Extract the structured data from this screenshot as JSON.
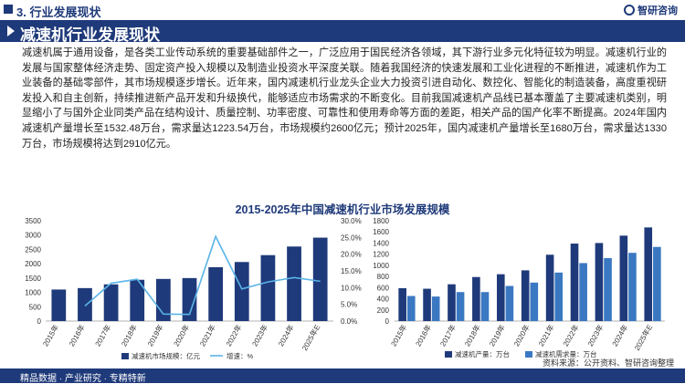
{
  "header": {
    "section": "3. 行业发展现状",
    "logo_text": "智研咨询"
  },
  "title": "减速机行业发展现状",
  "paragraph": "减速机属于通用设备，是各类工业传动系统的重要基础部件之一，广泛应用于国民经济各领域，其下游行业多元化特征较为明显。减速机行业的发展与国家整体经济走势、固定资产投入规模以及制造业投资水平深度关联。随着我国经济的快速发展和工业化进程的不断推进，减速机作为工业装备的基础零部件，其市场规模逐步增长。近年来，国内减速机行业龙头企业大力投资引进自动化、数控化、智能化的制造装备，高度重视研发投入和自主创新，持续推进新产品开发和升级换代，能够适应市场需求的不断变化。目前我国减速机产品线已基本覆盖了主要减速机类别，明显缩小了与国外企业同类产品在结构设计、质量控制、功率密度、可靠性和使用寿命等方面的差距，相关产品的国产化率不断提高。2024年国内减速机产量增长至1532.48万台，需求量达1223.54万台，市场规模约2600亿元；预计2025年，国内减速机产量增长至1680万台，需求量达1330万台，市场规模将达到2910亿元。",
  "chart_title": "2015-2025年中国减速机行业市场发展规模",
  "source": "资料来源：公开资料、智研咨询整理",
  "footer": "精品数据 · 产业研究 · 专精特新",
  "colors": {
    "navy": "#1f3a7a",
    "blue": "#3a78c2",
    "line": "#5ab4e8"
  },
  "chart_data": [
    {
      "type": "bar",
      "categories": [
        "2015年",
        "2016年",
        "2017年",
        "2018年",
        "2019年",
        "2020年",
        "2021年",
        "2022年",
        "2023年",
        "2024年",
        "2025年E"
      ],
      "series": [
        {
          "name": "减速机市场规模：亿元",
          "type": "bar",
          "axis": "left",
          "values": [
            1100,
            1150,
            1280,
            1440,
            1470,
            1500,
            1880,
            2060,
            2300,
            2600,
            2910
          ]
        },
        {
          "name": "增速：%",
          "type": "line",
          "axis": "right",
          "values": [
            null,
            4.5,
            11.3,
            12.5,
            2.1,
            2.0,
            25.3,
            9.6,
            11.7,
            13.0,
            11.9
          ]
        }
      ],
      "yticks_left": [
        "0",
        "500",
        "1000",
        "1500",
        "2000",
        "2500",
        "3000",
        "3500"
      ],
      "yticks_right": [
        "0.0%",
        "5.0%",
        "10.0%",
        "15.0%",
        "20.0%",
        "25.0%",
        "30.0%"
      ],
      "ylim_left": [
        0,
        3500
      ],
      "ylim_right": [
        0,
        30
      ],
      "legend_position": "bottom"
    },
    {
      "type": "bar",
      "categories": [
        "2015年",
        "2016年",
        "2017年",
        "2018年",
        "2019年",
        "2020年",
        "2021年",
        "2022年",
        "2023年",
        "2024年",
        "2025年E"
      ],
      "series": [
        {
          "name": "减速机产量：万台",
          "values": [
            590,
            580,
            660,
            790,
            840,
            910,
            1190,
            1390,
            1400,
            1532.48,
            1680
          ]
        },
        {
          "name": "减速机需求量：万台",
          "values": [
            450,
            440,
            520,
            520,
            630,
            690,
            870,
            1040,
            1130,
            1223.54,
            1330
          ]
        }
      ],
      "yticks": [
        "0",
        "200",
        "400",
        "600",
        "800",
        "1000",
        "1200",
        "1400",
        "1600",
        "1800"
      ],
      "ylim": [
        0,
        1800
      ],
      "legend_position": "bottom"
    }
  ]
}
